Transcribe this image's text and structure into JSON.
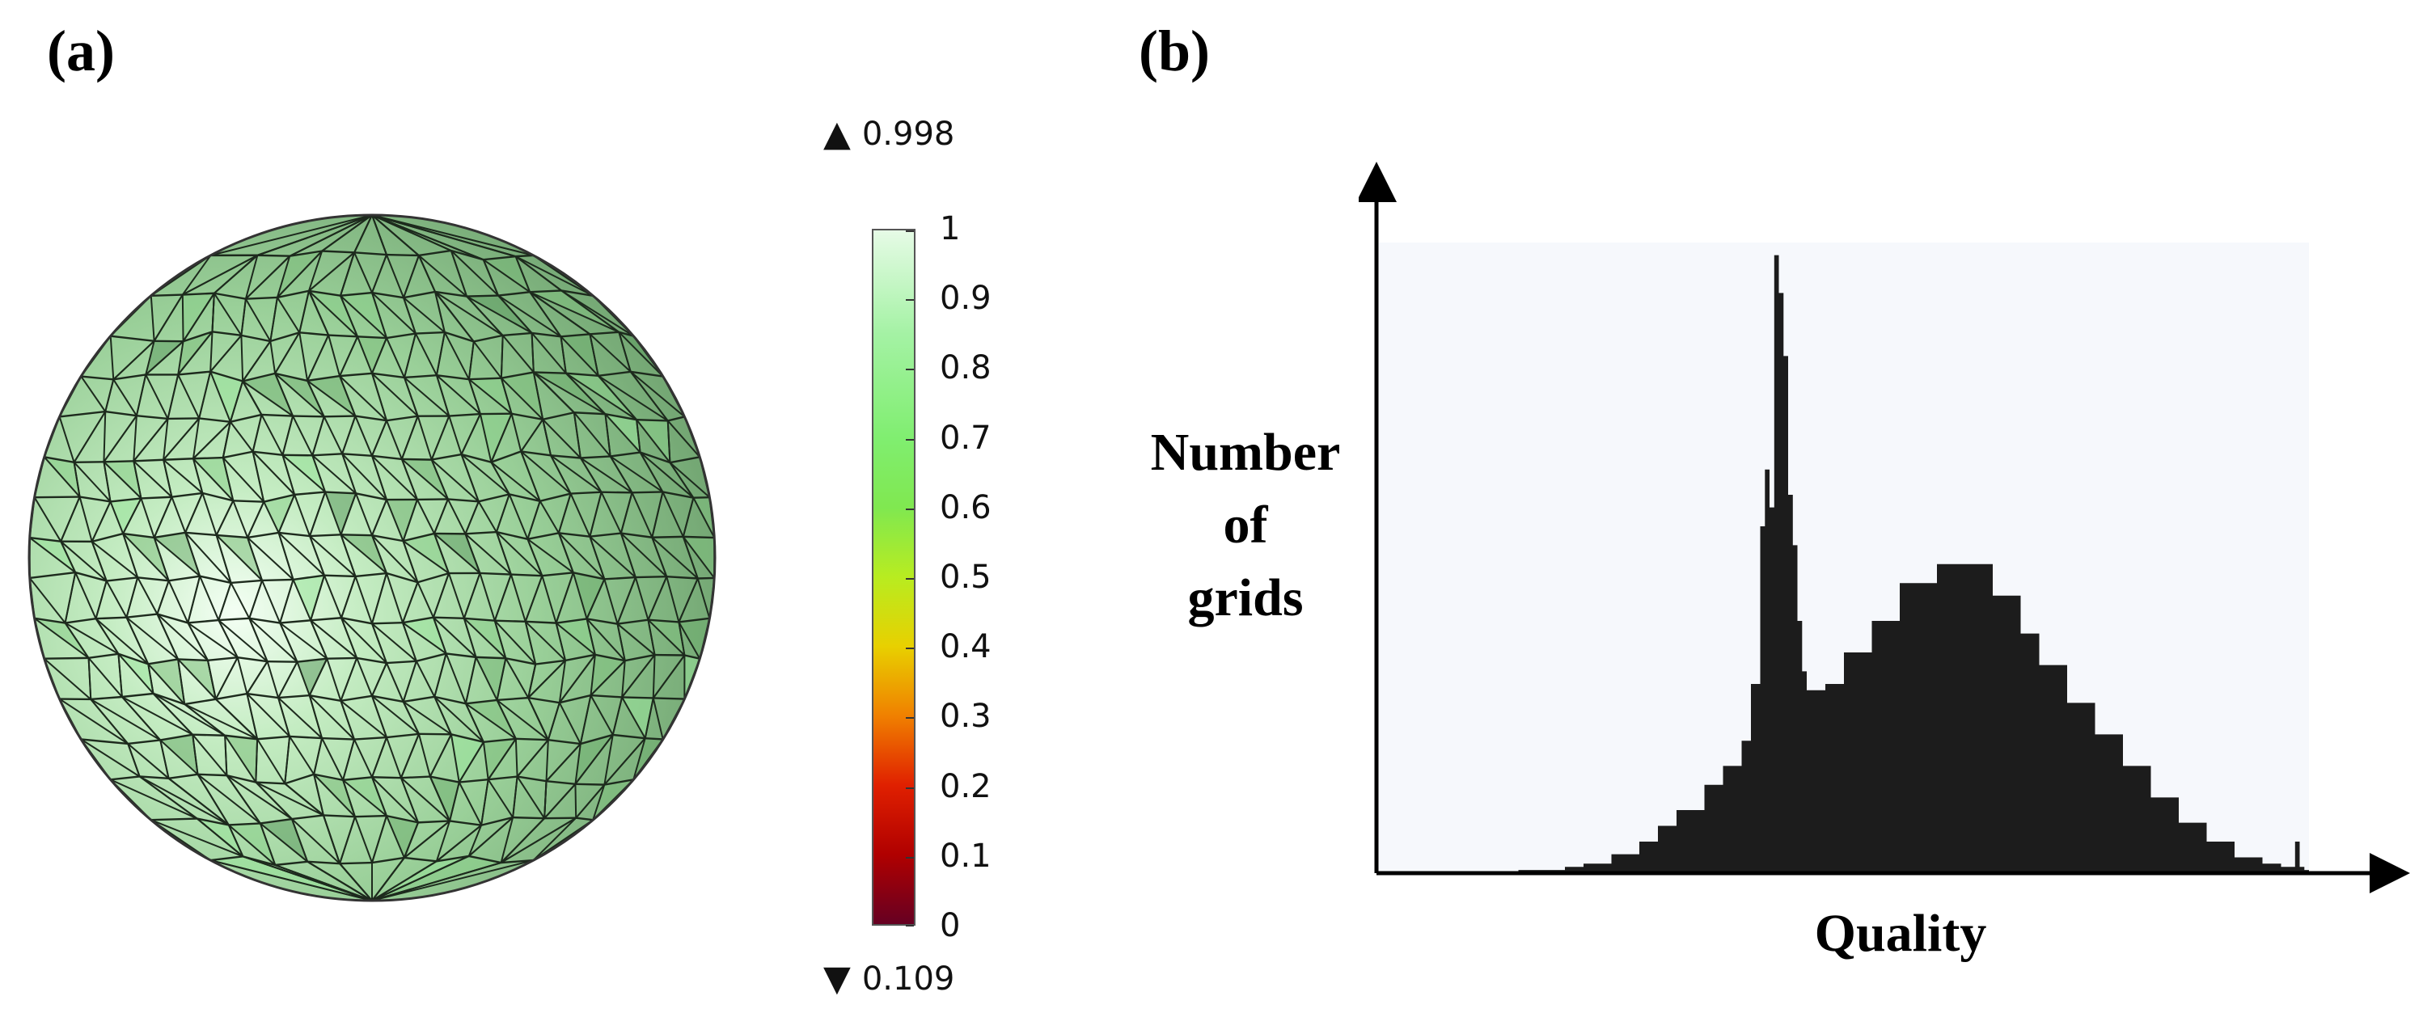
{
  "panels": {
    "a": "(a)",
    "b": "(b)"
  },
  "colorbar": {
    "max_glyph": "▲",
    "min_glyph": "▼",
    "max_label": "0.998",
    "min_label": "0.109",
    "ticks": [
      "0",
      "0.1",
      "0.2",
      "0.3",
      "0.4",
      "0.5",
      "0.6",
      "0.7",
      "0.8",
      "0.9",
      "1"
    ]
  },
  "chart_data": [
    {
      "type": "heatmap",
      "description_kind": "mesh quality colormap on sphere",
      "range": [
        0,
        1
      ],
      "data_min": 0.109,
      "data_max": 0.998,
      "colormap_stops": [
        "#660022",
        "#b00000",
        "#e02000",
        "#f08000",
        "#e8d000",
        "#b8ec20",
        "#80e850",
        "#80ee70",
        "#a4f2a4",
        "#e6fbe6"
      ]
    },
    {
      "type": "area",
      "xlabel_lines": [],
      "xlabel": "Quality",
      "ylabel_lines": [
        "Number",
        "of",
        "grids"
      ],
      "x": [
        0.0,
        0.05,
        0.1,
        0.15,
        0.2,
        0.22,
        0.25,
        0.28,
        0.3,
        0.32,
        0.35,
        0.37,
        0.39,
        0.4,
        0.41,
        0.415,
        0.42,
        0.425,
        0.43,
        0.435,
        0.44,
        0.445,
        0.45,
        0.455,
        0.46,
        0.47,
        0.48,
        0.5,
        0.53,
        0.56,
        0.6,
        0.63,
        0.66,
        0.69,
        0.71,
        0.74,
        0.77,
        0.8,
        0.83,
        0.86,
        0.89,
        0.92,
        0.95,
        0.97,
        0.98,
        0.985,
        0.99,
        0.995,
        1.0
      ],
      "y": [
        0,
        0,
        0,
        0.5,
        1,
        1.5,
        3,
        5,
        7.5,
        10,
        14,
        17,
        21,
        30,
        55,
        64,
        58,
        98,
        92,
        82,
        60,
        52,
        40,
        32,
        29,
        29,
        30,
        35,
        40,
        46,
        49,
        49,
        44,
        38,
        33,
        27,
        22,
        17,
        12,
        8,
        5,
        2.5,
        1.5,
        1,
        1,
        5,
        1,
        0.5,
        0
      ],
      "ylim": [
        0,
        100
      ],
      "xlim": [
        0,
        1
      ],
      "fill_color": "#1c1c1c",
      "background_color": "#f6f8fc",
      "grid": false
    }
  ]
}
